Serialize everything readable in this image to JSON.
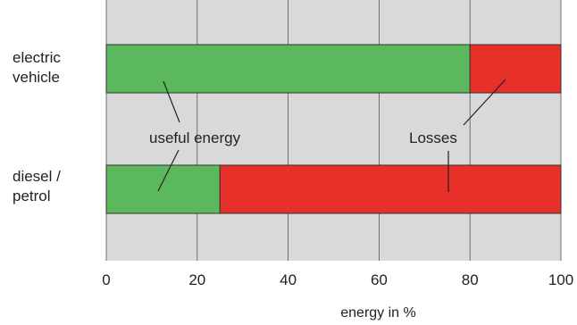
{
  "chart_data": {
    "type": "bar",
    "stacked": true,
    "orientation": "horizontal",
    "categories": [
      "electric\nvehicle",
      "diesel /\npetrol"
    ],
    "series": [
      {
        "name": "useful energy",
        "values": [
          80,
          25
        ],
        "color": "#5cb85c"
      },
      {
        "name": "Losses",
        "values": [
          20,
          75
        ],
        "color": "#e8302a"
      }
    ],
    "xlabel": "energy in %",
    "xlim": [
      0,
      100
    ],
    "xticks": [
      0,
      20,
      40,
      60,
      80,
      100
    ],
    "grid": true,
    "background": "#d9d9d9",
    "annotations": [
      {
        "text": "useful energy"
      },
      {
        "text": "Losses"
      }
    ]
  }
}
